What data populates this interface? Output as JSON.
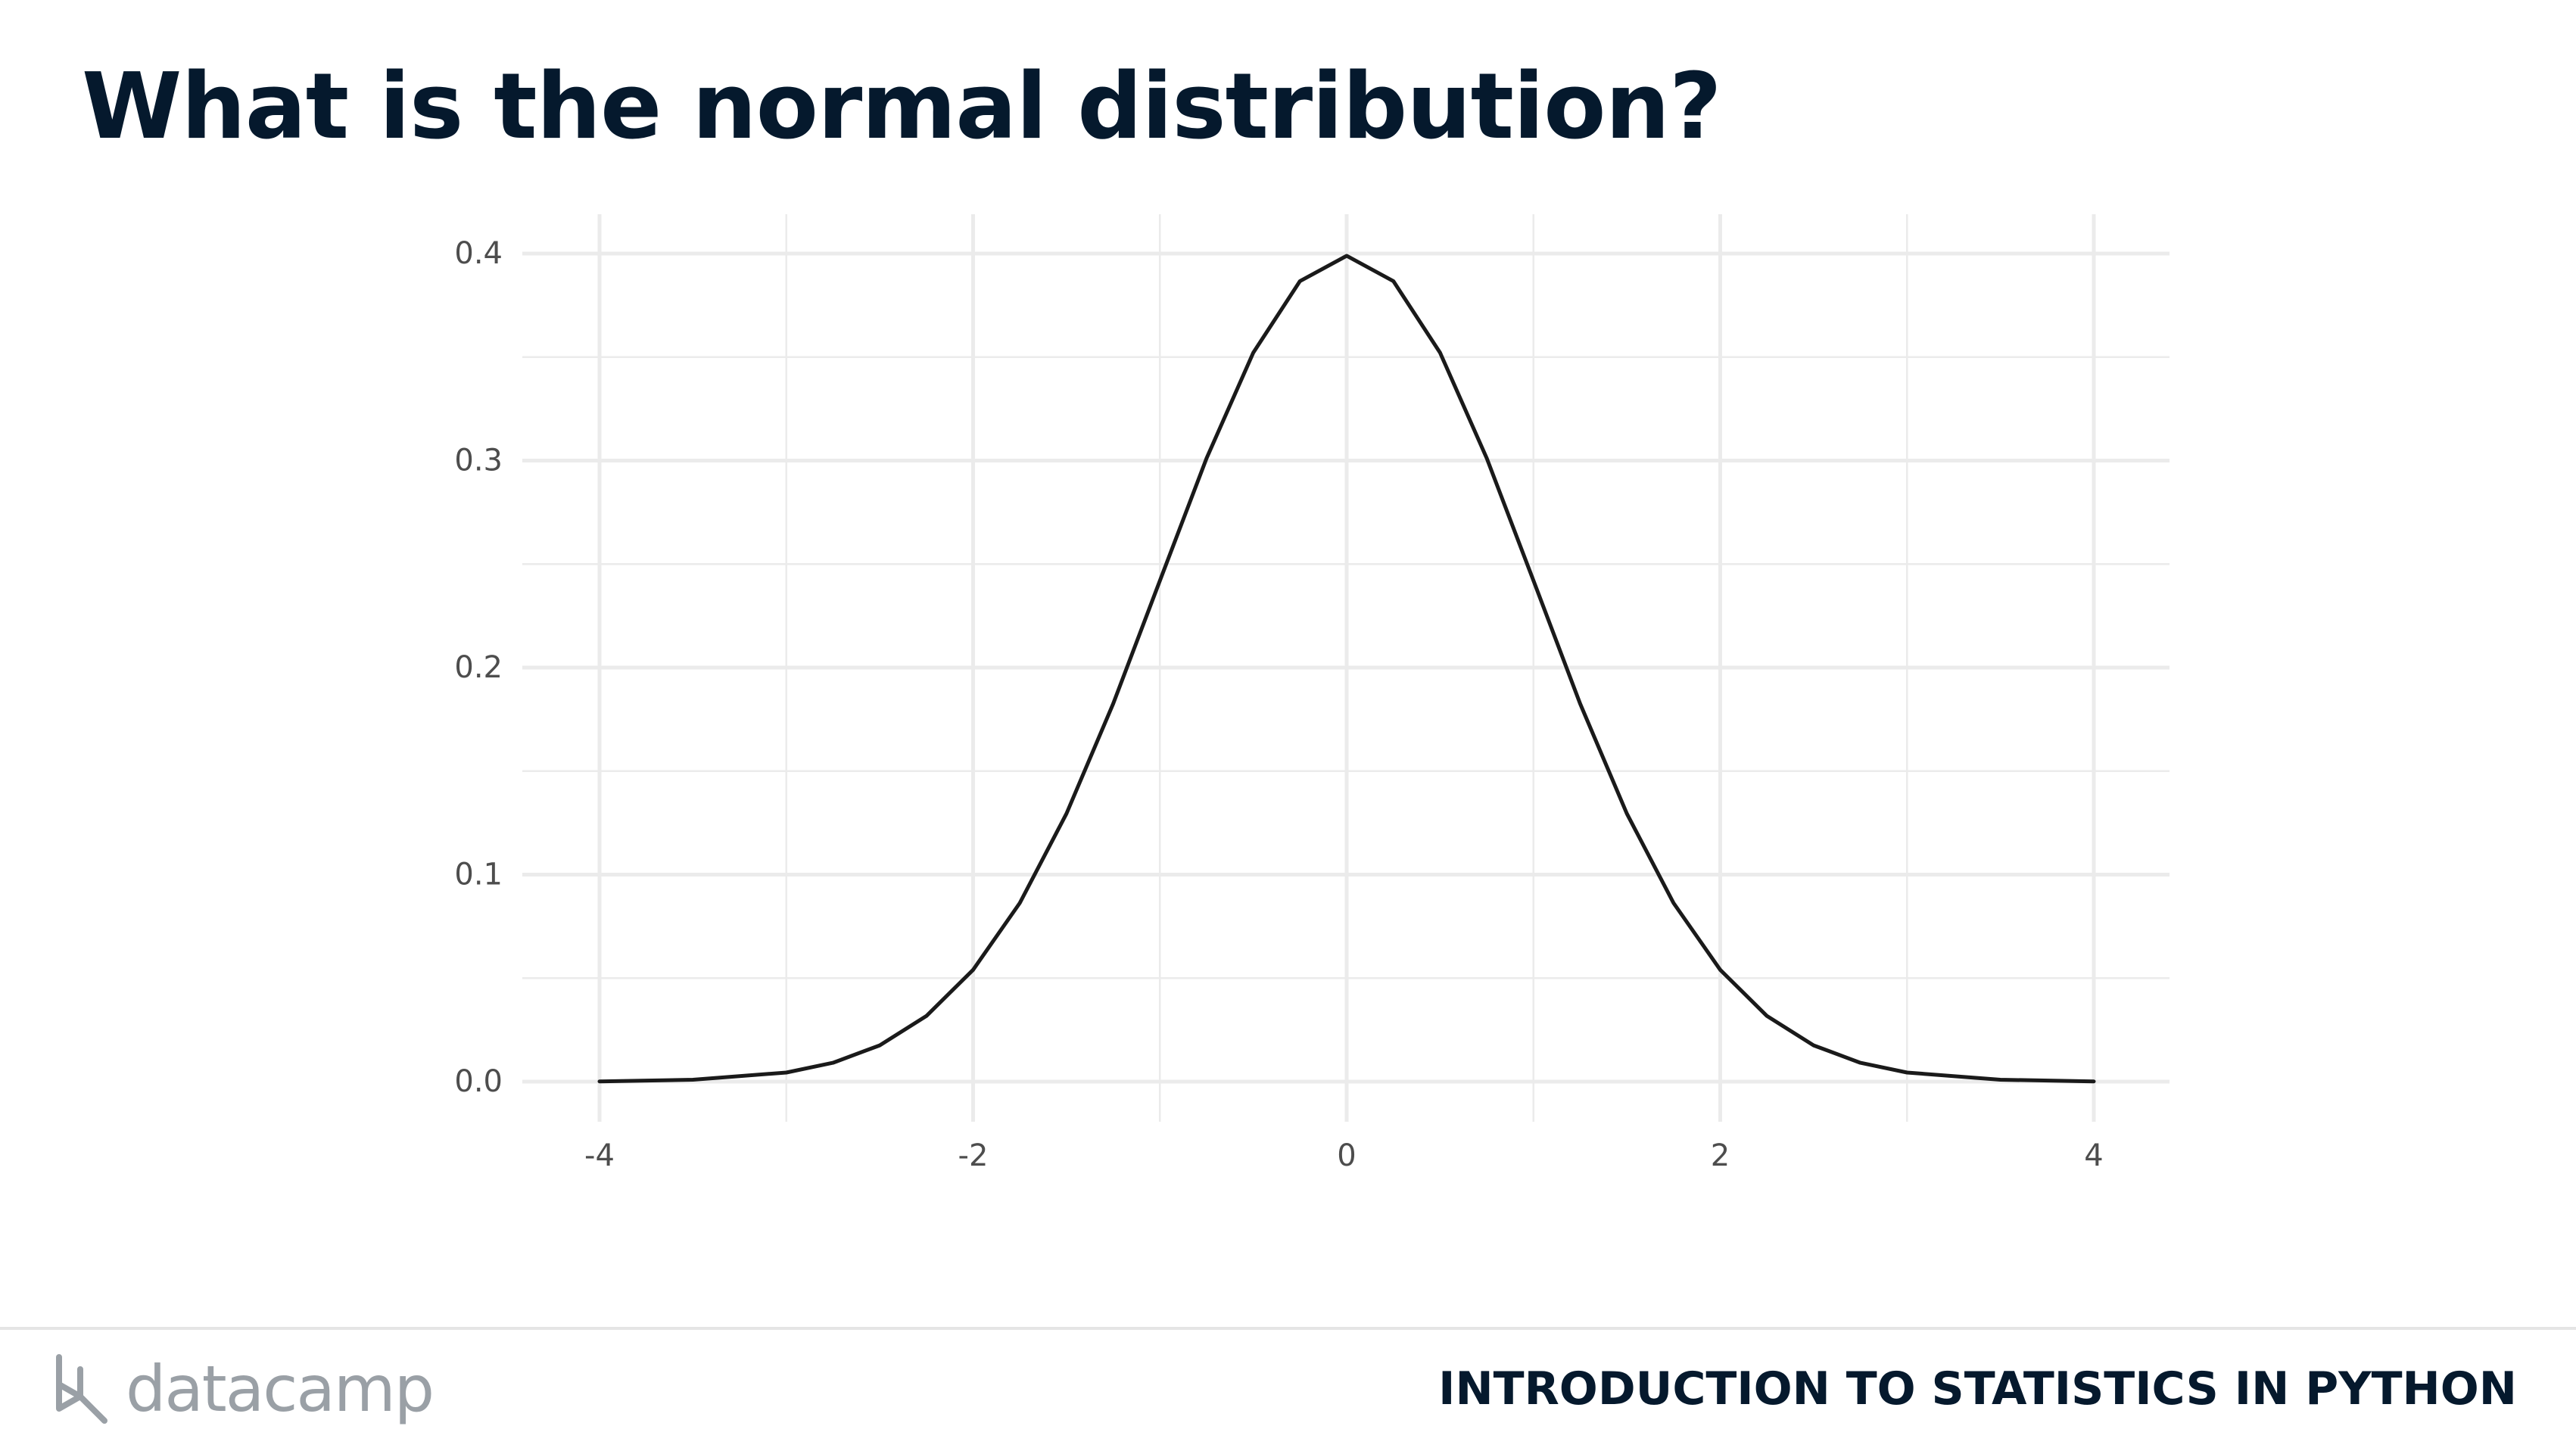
{
  "slide": {
    "title": "What is the normal distribution?"
  },
  "footer": {
    "brand": "datacamp",
    "course": "INTRODUCTION TO STATISTICS IN PYTHON"
  },
  "colors": {
    "title": "#05192d",
    "curve": "#1a1a1a",
    "grid": "#ebebeb",
    "tick_text": "#4d4d4d",
    "brand_gray": "#9aa0a6"
  },
  "chart_data": {
    "type": "line",
    "title": "",
    "xlabel": "",
    "ylabel": "",
    "xlim": [
      -4,
      4
    ],
    "ylim": [
      0,
      0.4
    ],
    "x_ticks": [
      -4,
      -2,
      0,
      2,
      4
    ],
    "x_tick_labels": [
      "-4",
      "-2",
      "0",
      "2",
      "4"
    ],
    "y_ticks": [
      0.0,
      0.1,
      0.2,
      0.3,
      0.4
    ],
    "y_tick_labels": [
      "0.0",
      "0.1",
      "0.2",
      "0.3",
      "0.4"
    ],
    "grid": true,
    "legend": "none",
    "series": [
      {
        "x": [
          -4,
          -3.5,
          -3,
          -2.75,
          -2.5,
          -2.25,
          -2,
          -1.75,
          -1.5,
          -1.25,
          -1,
          -0.75,
          -0.5,
          -0.25,
          0,
          0.25,
          0.5,
          0.75,
          1,
          1.25,
          1.5,
          1.75,
          2,
          2.25,
          2.5,
          2.75,
          3,
          3.5,
          4
        ],
        "y": [
          0.0001,
          0.0009,
          0.0044,
          0.0091,
          0.0175,
          0.0317,
          0.054,
          0.0863,
          0.1295,
          0.1826,
          0.242,
          0.3011,
          0.3521,
          0.3867,
          0.3989,
          0.3867,
          0.3521,
          0.3011,
          0.242,
          0.1826,
          0.1295,
          0.0863,
          0.054,
          0.0317,
          0.0175,
          0.0091,
          0.0044,
          0.0009,
          0.0001
        ]
      }
    ]
  }
}
